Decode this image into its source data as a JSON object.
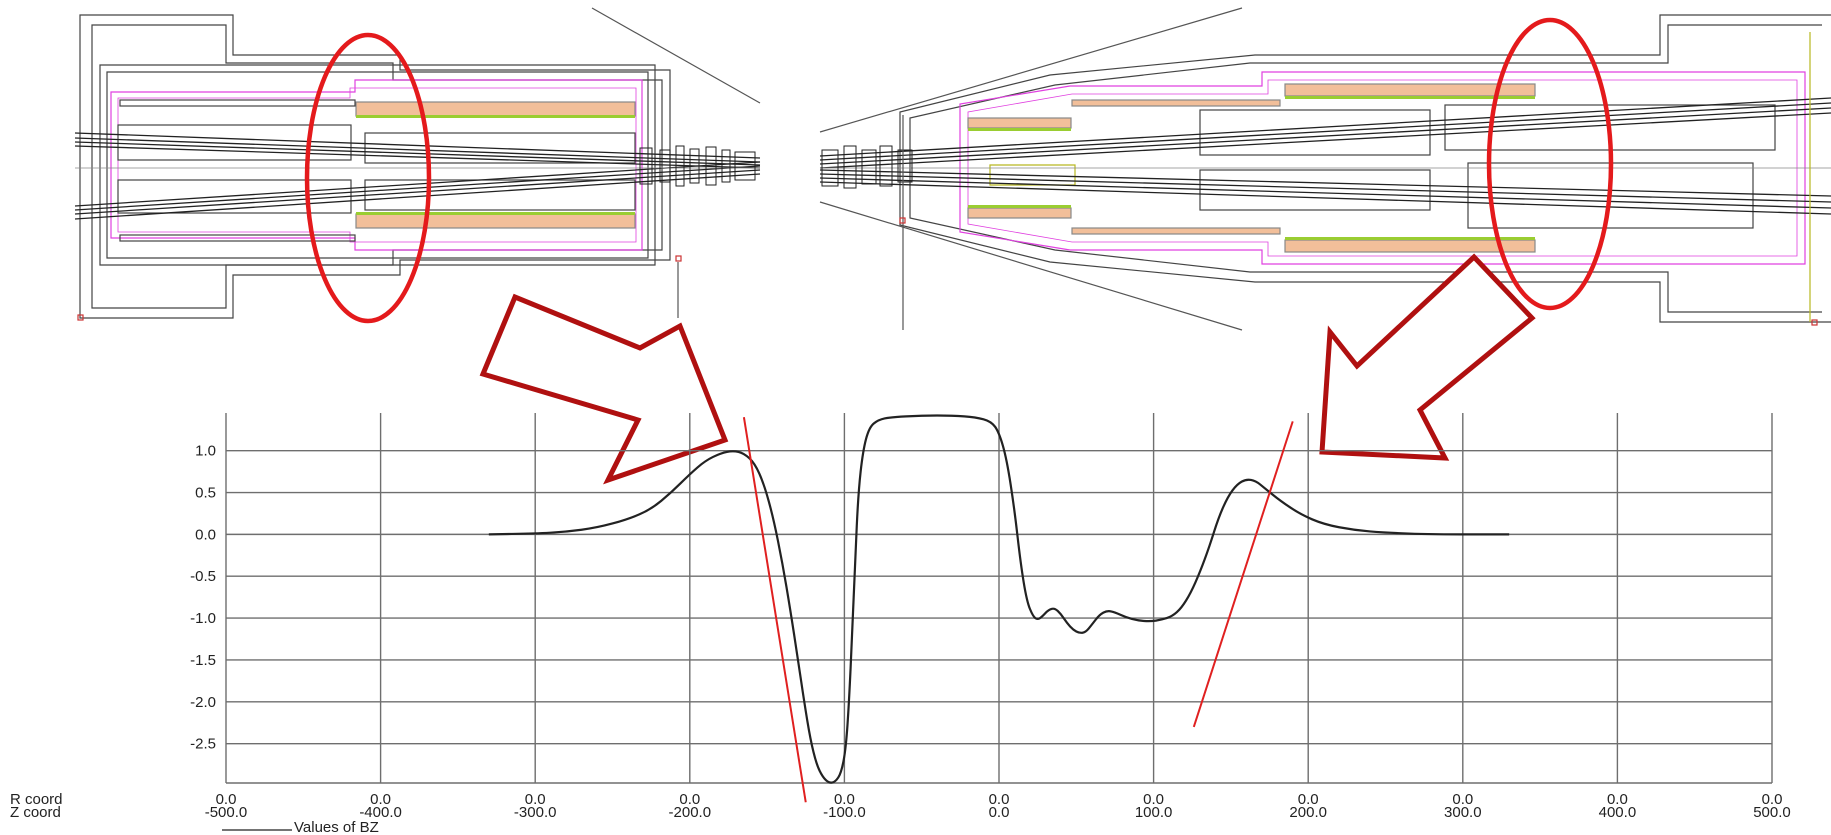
{
  "chart_data": {
    "type": "line",
    "x_label_rows": [
      "R coord",
      "Z coord"
    ],
    "legend_label": "Values of BZ",
    "r_coord_ticks": [
      "0.0",
      "0.0",
      "0.0",
      "0.0",
      "0.0",
      "0.0",
      "0.0",
      "0.0",
      "0.0",
      "0.0",
      "0.0"
    ],
    "z_coord_ticks": [
      "-500.0",
      "-400.0",
      "-300.0",
      "-200.0",
      "-100.0",
      "0.0",
      "100.0",
      "200.0",
      "300.0",
      "400.0",
      "500.0"
    ],
    "y_ticks": [
      "1.0",
      "0.5",
      "0.0",
      "-0.5",
      "-1.0",
      "-1.5",
      "-2.0",
      "-2.5"
    ],
    "xlim": [
      -500,
      500
    ],
    "ylim": [
      -2.97,
      1.45
    ],
    "grid": true,
    "series": [
      {
        "name": "Values of BZ",
        "color": "#222222",
        "points": [
          [
            -330,
            0.0
          ],
          [
            -300,
            0.01
          ],
          [
            -280,
            0.03
          ],
          [
            -260,
            0.08
          ],
          [
            -240,
            0.18
          ],
          [
            -225,
            0.3
          ],
          [
            -212,
            0.5
          ],
          [
            -200,
            0.72
          ],
          [
            -190,
            0.88
          ],
          [
            -180,
            0.97
          ],
          [
            -172,
            1.0
          ],
          [
            -165,
            0.97
          ],
          [
            -158,
            0.85
          ],
          [
            -152,
            0.6
          ],
          [
            -146,
            0.2
          ],
          [
            -140,
            -0.35
          ],
          [
            -135,
            -0.9
          ],
          [
            -130,
            -1.5
          ],
          [
            -126,
            -2.0
          ],
          [
            -122,
            -2.45
          ],
          [
            -118,
            -2.75
          ],
          [
            -114,
            -2.9
          ],
          [
            -110,
            -2.97
          ],
          [
            -106,
            -2.96
          ],
          [
            -102,
            -2.85
          ],
          [
            -99,
            -2.55
          ],
          [
            -97,
            -2.0
          ],
          [
            -95,
            -1.2
          ],
          [
            -93,
            -0.3
          ],
          [
            -91,
            0.5
          ],
          [
            -88,
            1.0
          ],
          [
            -84,
            1.28
          ],
          [
            -78,
            1.37
          ],
          [
            -70,
            1.4
          ],
          [
            -50,
            1.42
          ],
          [
            -30,
            1.42
          ],
          [
            -15,
            1.4
          ],
          [
            -5,
            1.35
          ],
          [
            0,
            1.22
          ],
          [
            5,
            0.9
          ],
          [
            10,
            0.3
          ],
          [
            14,
            -0.35
          ],
          [
            18,
            -0.8
          ],
          [
            22,
            -0.98
          ],
          [
            25,
            -1.02
          ],
          [
            28,
            -0.98
          ],
          [
            32,
            -0.9
          ],
          [
            36,
            -0.88
          ],
          [
            40,
            -0.95
          ],
          [
            44,
            -1.06
          ],
          [
            48,
            -1.14
          ],
          [
            52,
            -1.18
          ],
          [
            56,
            -1.17
          ],
          [
            60,
            -1.08
          ],
          [
            65,
            -0.96
          ],
          [
            70,
            -0.91
          ],
          [
            75,
            -0.93
          ],
          [
            82,
            -0.99
          ],
          [
            90,
            -1.03
          ],
          [
            98,
            -1.04
          ],
          [
            105,
            -1.02
          ],
          [
            112,
            -0.98
          ],
          [
            118,
            -0.88
          ],
          [
            124,
            -0.7
          ],
          [
            130,
            -0.45
          ],
          [
            136,
            -0.15
          ],
          [
            142,
            0.2
          ],
          [
            148,
            0.45
          ],
          [
            154,
            0.6
          ],
          [
            160,
            0.66
          ],
          [
            166,
            0.64
          ],
          [
            172,
            0.55
          ],
          [
            182,
            0.4
          ],
          [
            195,
            0.24
          ],
          [
            210,
            0.12
          ],
          [
            230,
            0.05
          ],
          [
            250,
            0.02
          ],
          [
            280,
            0.0
          ],
          [
            330,
            0.0
          ]
        ]
      }
    ],
    "tangent_lines": [
      {
        "color": "#e02020",
        "points": [
          [
            -165,
            1.4
          ],
          [
            -125,
            -3.2
          ]
        ]
      },
      {
        "color": "#e02020",
        "points": [
          [
            126,
            -2.3
          ],
          [
            190,
            1.35
          ]
        ]
      }
    ]
  },
  "diagram": {
    "ellipse_color": "#e41a1c",
    "arrow_color": "#b01010",
    "coil_fill": "#f2bf9a",
    "coil_stripe": "#9acd32",
    "outline_magenta": "#e040e0"
  }
}
